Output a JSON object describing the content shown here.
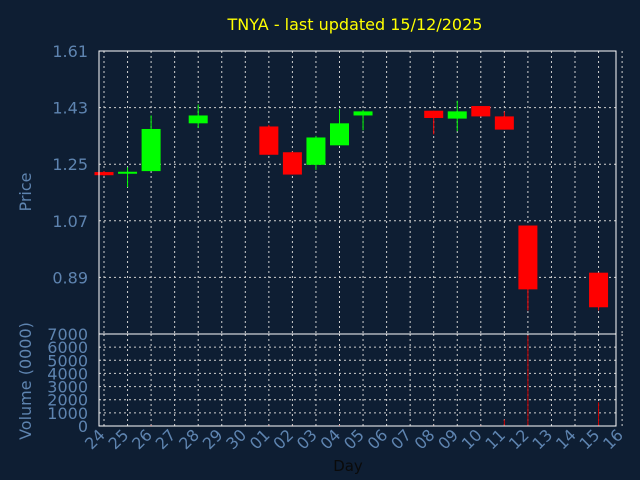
{
  "colors": {
    "background": "#0e1e33",
    "title": "#ffff00",
    "axis_text": "#5e84b0",
    "frame": "#ffffff",
    "grid": "#d0d0d0",
    "up": "#00ff00",
    "down": "#ff0000",
    "volume": "#cc0000"
  },
  "chart_data": [
    {
      "type": "candlestick",
      "title": "TNYA - last updated 15/12/2025",
      "ylabel": "Price",
      "y_ticks": [
        "1.61",
        "1.43",
        "1.25",
        "1.07",
        "0.89"
      ],
      "ylim": [
        0.71,
        1.61
      ],
      "grid": true,
      "candles": [
        {
          "day": "24",
          "open": 1.225,
          "close": 1.215,
          "high": 1.228,
          "low": 1.213
        },
        {
          "day": "25",
          "open": 1.22,
          "close": 1.226,
          "high": 1.24,
          "low": 1.177
        },
        {
          "day": "26",
          "open": 1.228,
          "close": 1.362,
          "high": 1.405,
          "low": 1.228
        },
        {
          "day": "28",
          "open": 1.38,
          "close": 1.405,
          "high": 1.44,
          "low": 1.365
        },
        {
          "day": "01",
          "open": 1.37,
          "close": 1.28,
          "high": 1.375,
          "low": 1.28
        },
        {
          "day": "02",
          "open": 1.288,
          "close": 1.217,
          "high": 1.29,
          "low": 1.217
        },
        {
          "day": "03",
          "open": 1.248,
          "close": 1.335,
          "high": 1.34,
          "low": 1.232
        },
        {
          "day": "04",
          "open": 1.31,
          "close": 1.38,
          "high": 1.425,
          "low": 1.31
        },
        {
          "day": "05",
          "open": 1.405,
          "close": 1.418,
          "high": 1.422,
          "low": 1.358
        },
        {
          "day": "08",
          "open": 1.42,
          "close": 1.397,
          "high": 1.42,
          "low": 1.345
        },
        {
          "day": "09",
          "open": 1.395,
          "close": 1.418,
          "high": 1.452,
          "low": 1.355
        },
        {
          "day": "10",
          "open": 1.435,
          "close": 1.402,
          "high": 1.435,
          "low": 1.402
        },
        {
          "day": "11",
          "open": 1.402,
          "close": 1.36,
          "high": 1.418,
          "low": 1.36
        },
        {
          "day": "12",
          "open": 1.055,
          "close": 0.852,
          "high": 1.055,
          "low": 0.785
        },
        {
          "day": "15",
          "open": 0.905,
          "close": 0.795,
          "high": 0.905,
          "low": 0.785
        }
      ]
    },
    {
      "type": "bar",
      "xlabel": "Day",
      "ylabel": "Volume (0000)",
      "y_ticks": [
        "7000",
        "6000",
        "5000",
        "4000",
        "3000",
        "2000",
        "1000",
        "0"
      ],
      "ylim": [
        0,
        7000
      ],
      "grid": true,
      "categories": [
        "24",
        "25",
        "26",
        "27",
        "28",
        "29",
        "30",
        "01",
        "02",
        "03",
        "04",
        "05",
        "06",
        "07",
        "08",
        "09",
        "10",
        "11",
        "12",
        "13",
        "14",
        "15",
        "16"
      ],
      "volume": [
        {
          "day": "24",
          "value": 20
        },
        {
          "day": "25",
          "value": 30
        },
        {
          "day": "26",
          "value": 80
        },
        {
          "day": "28",
          "value": 40
        },
        {
          "day": "01",
          "value": 60
        },
        {
          "day": "02",
          "value": 50
        },
        {
          "day": "03",
          "value": 40
        },
        {
          "day": "04",
          "value": 70
        },
        {
          "day": "05",
          "value": 40
        },
        {
          "day": "08",
          "value": 50
        },
        {
          "day": "09",
          "value": 40
        },
        {
          "day": "10",
          "value": 60
        },
        {
          "day": "11",
          "value": 500
        },
        {
          "day": "12",
          "value": 6900
        },
        {
          "day": "15",
          "value": 1800
        }
      ]
    }
  ]
}
